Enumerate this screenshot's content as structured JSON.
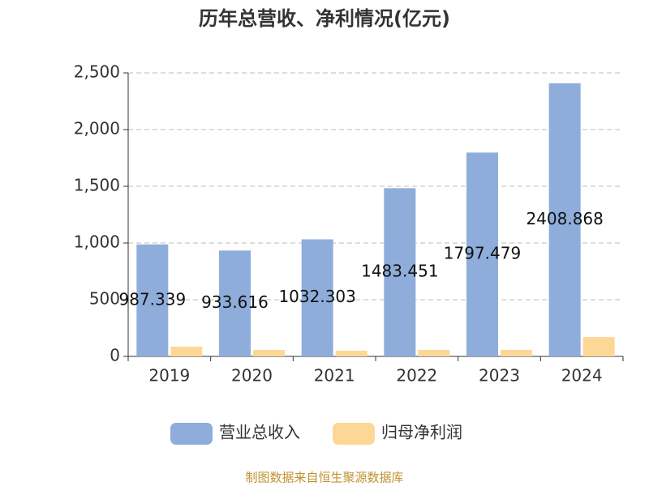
{
  "chart_data": {
    "type": "bar",
    "title": "历年总营收、净利情况(亿元)",
    "categories": [
      "2019",
      "2020",
      "2021",
      "2022",
      "2023",
      "2024"
    ],
    "series": [
      {
        "name": "营业总收入",
        "color": "#8eaddb",
        "values": [
          987.339,
          933.616,
          1032.303,
          1483.451,
          1797.479,
          2408.868
        ],
        "show_labels": true
      },
      {
        "name": "归母净利润",
        "color": "#fdd796",
        "values": [
          86,
          57,
          50,
          57,
          57,
          171
        ],
        "show_labels": false
      }
    ],
    "ylim": [
      0,
      2500
    ],
    "yticks": [
      0,
      500,
      {
        "value": 1000,
        "label": "1,000"
      },
      {
        "value": 1500,
        "label": "1,500"
      },
      {
        "value": 2000,
        "label": "2,000"
      },
      {
        "value": 2500,
        "label": "2,500"
      }
    ],
    "grid": true,
    "legend": "bottom",
    "source": "制图数据来自恒生聚源数据库"
  }
}
